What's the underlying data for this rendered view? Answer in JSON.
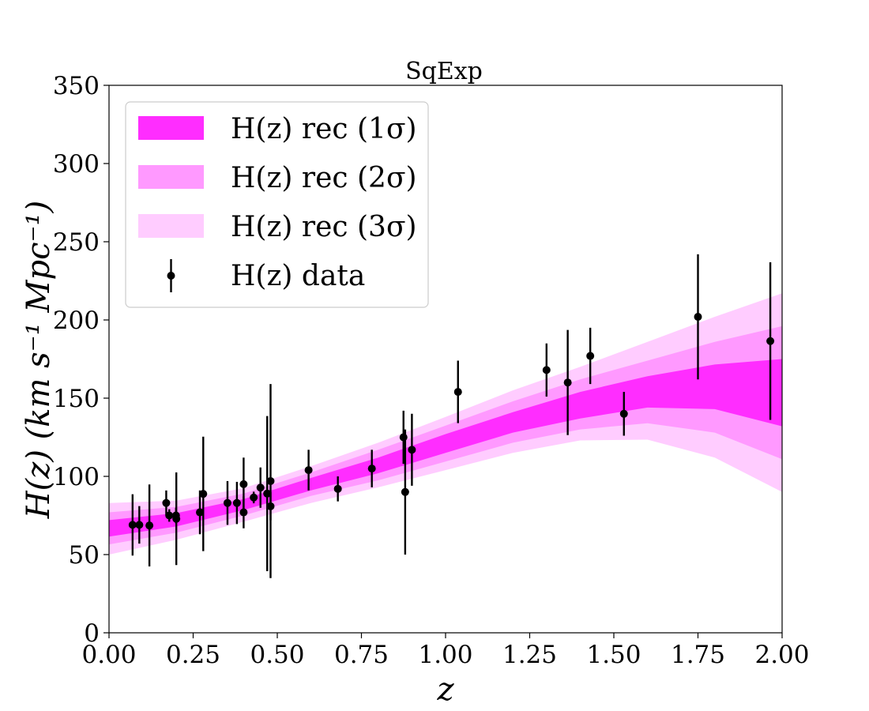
{
  "chart_data": {
    "type": "scatter",
    "title": "SqExp",
    "xlabel": "z",
    "ylabel": "H(z) (km s⁻¹ Mpc⁻¹)",
    "xlim": [
      0,
      2
    ],
    "ylim": [
      0,
      350
    ],
    "x_ticks": [
      "0.00",
      "0.25",
      "0.50",
      "0.75",
      "1.00",
      "1.25",
      "1.50",
      "1.75",
      "2.00"
    ],
    "y_ticks": [
      "0",
      "50",
      "100",
      "150",
      "200",
      "250",
      "300",
      "350"
    ],
    "legend_placement": "top-left",
    "colors": {
      "band_1sigma": "#ff2dff",
      "band_2sigma": "#ff99ff",
      "band_3sigma": "#ffccff",
      "data": "#000000"
    },
    "legend": [
      {
        "key": "band_1sigma",
        "label": "H(z) rec (1σ)"
      },
      {
        "key": "band_2sigma",
        "label": "H(z) rec (2σ)"
      },
      {
        "key": "band_3sigma",
        "label": "H(z) rec (3σ)"
      },
      {
        "key": "data",
        "label": "H(z) data"
      }
    ],
    "reconstruction": {
      "z": [
        0.0,
        0.2,
        0.4,
        0.6,
        0.8,
        1.0,
        1.2,
        1.4,
        1.6,
        1.8,
        2.0
      ],
      "sigma1_low": [
        61.5,
        68.0,
        78.5,
        91.0,
        102.0,
        115.0,
        128.0,
        137.0,
        144.0,
        143.0,
        132.0
      ],
      "sigma1_high": [
        72.0,
        76.5,
        85.5,
        99.0,
        112.0,
        127.0,
        141.0,
        154.0,
        164.0,
        171.5,
        175.0
      ],
      "sigma2_low": [
        56.5,
        64.0,
        75.0,
        87.5,
        97.5,
        109.5,
        121.5,
        130.0,
        134.0,
        128.0,
        111.0
      ],
      "sigma2_high": [
        77.0,
        80.5,
        89.0,
        102.5,
        117.0,
        132.5,
        148.0,
        162.0,
        174.0,
        186.0,
        196.0
      ],
      "sigma3_low": [
        50.0,
        59.5,
        71.0,
        83.0,
        93.0,
        104.0,
        115.0,
        123.0,
        123.5,
        112.0,
        90.0
      ],
      "sigma3_high": [
        83.0,
        84.5,
        92.5,
        106.5,
        121.5,
        138.0,
        155.0,
        170.0,
        186.0,
        202.0,
        217.0
      ]
    },
    "points": [
      {
        "x": 0.07,
        "y": 69.0,
        "err": 19.6
      },
      {
        "x": 0.09,
        "y": 69.0,
        "err": 12.0
      },
      {
        "x": 0.12,
        "y": 68.6,
        "err": 26.2
      },
      {
        "x": 0.17,
        "y": 83.0,
        "err": 8.0
      },
      {
        "x": 0.179,
        "y": 75.0,
        "err": 4.0
      },
      {
        "x": 0.199,
        "y": 75.0,
        "err": 5.0
      },
      {
        "x": 0.2,
        "y": 72.9,
        "err": 29.6
      },
      {
        "x": 0.27,
        "y": 77.0,
        "err": 14.0
      },
      {
        "x": 0.28,
        "y": 88.8,
        "err": 36.6
      },
      {
        "x": 0.352,
        "y": 83.0,
        "err": 14.0
      },
      {
        "x": 0.38,
        "y": 83.0,
        "err": 13.5
      },
      {
        "x": 0.4,
        "y": 95.0,
        "err": 17.0
      },
      {
        "x": 0.4,
        "y": 77.0,
        "err": 10.2
      },
      {
        "x": 0.43,
        "y": 86.5,
        "err": 3.7
      },
      {
        "x": 0.45,
        "y": 92.8,
        "err": 12.9
      },
      {
        "x": 0.47,
        "y": 89.0,
        "err": 49.6
      },
      {
        "x": 0.48,
        "y": 97.0,
        "err": 62.0
      },
      {
        "x": 0.48,
        "y": 80.9,
        "err": 9.0
      },
      {
        "x": 0.593,
        "y": 104.0,
        "err": 13.0
      },
      {
        "x": 0.68,
        "y": 92.0,
        "err": 8.0
      },
      {
        "x": 0.781,
        "y": 105.0,
        "err": 12.0
      },
      {
        "x": 0.875,
        "y": 125.0,
        "err": 17.0
      },
      {
        "x": 0.88,
        "y": 90.0,
        "err": 40.0
      },
      {
        "x": 0.9,
        "y": 117.0,
        "err": 23.0
      },
      {
        "x": 1.037,
        "y": 154.0,
        "err": 20.0
      },
      {
        "x": 1.3,
        "y": 168.0,
        "err": 17.0
      },
      {
        "x": 1.363,
        "y": 160.0,
        "err": 33.6
      },
      {
        "x": 1.43,
        "y": 177.0,
        "err": 18.0
      },
      {
        "x": 1.53,
        "y": 140.0,
        "err": 14.0
      },
      {
        "x": 1.75,
        "y": 202.0,
        "err": 40.0
      },
      {
        "x": 1.965,
        "y": 186.5,
        "err": 50.4
      }
    ]
  }
}
